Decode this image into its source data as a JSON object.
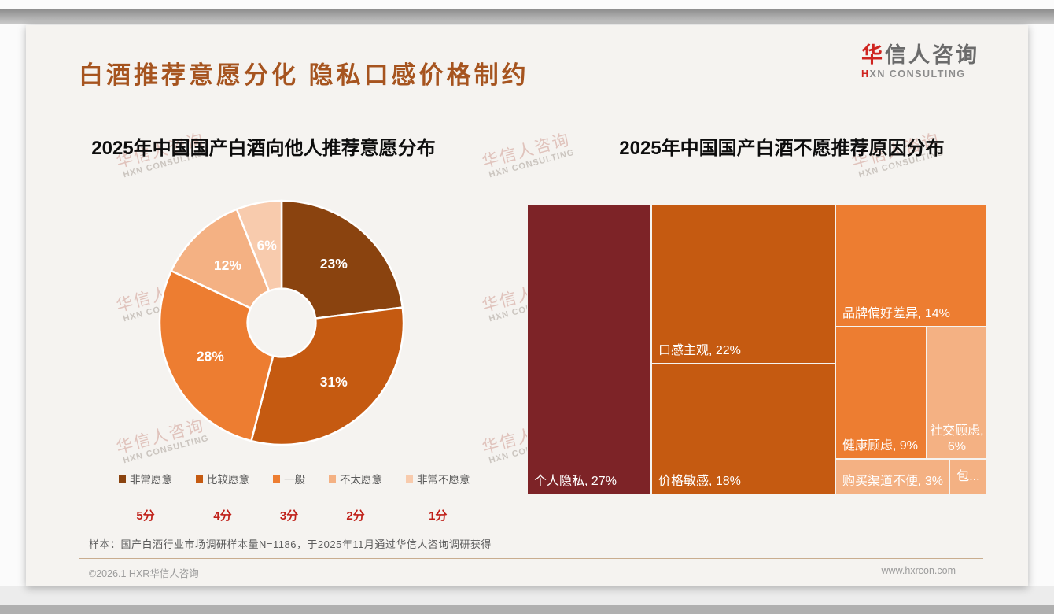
{
  "slide": {
    "title": "白酒推荐意愿分化 隐私口感价格制约",
    "logo": {
      "cn_first": "华",
      "cn_rest": "信人咨询",
      "en_first": "H",
      "en_rest": "XN CONSULTING"
    },
    "watermark": {
      "line1": "华信人咨询",
      "line2": "HXN CONSULTING"
    },
    "source_note": "样本：国产白酒行业市场调研样本量N=1186，于2025年11月通过华信人咨询调研获得",
    "footer": {
      "left": "©2026.1 HXR华信人咨询",
      "right": "www.hxrcon.com"
    }
  },
  "chart_data": [
    {
      "type": "pie",
      "subtype": "donut",
      "title": "2025年中国国产白酒向他人推荐意愿分布",
      "categories": [
        "非常愿意",
        "比较愿意",
        "一般",
        "不太愿意",
        "非常不愿意"
      ],
      "values": [
        23,
        31,
        28,
        12,
        6
      ],
      "labels": [
        "23%",
        "31%",
        "28%",
        "12%",
        "6%"
      ],
      "colors": [
        "#8A430F",
        "#C55A11",
        "#ED7D31",
        "#F4B183",
        "#F8CBAD"
      ],
      "scores": [
        "5分",
        "4分",
        "3分",
        "2分",
        "1分"
      ],
      "legend_position": "bottom",
      "start_angle_deg": 0,
      "direction": "clockwise",
      "inner_radius_ratio": 0.28
    },
    {
      "type": "treemap",
      "title": "2025年中国国产白酒不愿推荐原因分布",
      "cells": [
        {
          "name": "个人隐私",
          "value": 27,
          "label": "个人隐私, 27%",
          "color": "#7D2327",
          "rect": {
            "x": 0,
            "y": 0,
            "w": 27,
            "h": 100
          },
          "align": "bl"
        },
        {
          "name": "口感主观",
          "value": 22,
          "label": "口感主观, 22%",
          "color": "#C55A11",
          "rect": {
            "x": 27,
            "y": 0,
            "w": 40,
            "h": 55
          },
          "align": "bl"
        },
        {
          "name": "价格敏感",
          "value": 18,
          "label": "价格敏感, 18%",
          "color": "#C55A11",
          "rect": {
            "x": 27,
            "y": 55,
            "w": 40,
            "h": 45
          },
          "align": "bl"
        },
        {
          "name": "品牌偏好差异",
          "value": 14,
          "label": "品牌偏好差异, 14%",
          "color": "#ED7D31",
          "rect": {
            "x": 67,
            "y": 0,
            "w": 33,
            "h": 42.4
          },
          "align": "bl"
        },
        {
          "name": "健康顾虑",
          "value": 9,
          "label": "健康顾虑, 9%",
          "color": "#ED7D31",
          "rect": {
            "x": 67,
            "y": 42.4,
            "w": 19.8,
            "h": 45.5
          },
          "align": "bl"
        },
        {
          "name": "社交顾虑",
          "value": 6,
          "label": "社交顾虑, 6%",
          "color": "#F4B183",
          "rect": {
            "x": 86.8,
            "y": 42.4,
            "w": 13.2,
            "h": 45.5
          },
          "align": "bc"
        },
        {
          "name": "购买渠道不便",
          "value": 3,
          "label": "购买渠道不便, 3%",
          "color": "#F4B183",
          "rect": {
            "x": 67,
            "y": 87.9,
            "w": 24.75,
            "h": 12.1
          },
          "align": "bl"
        },
        {
          "name": "包...",
          "value": 1,
          "label": "包...",
          "color": "#F4B183",
          "rect": {
            "x": 91.75,
            "y": 87.9,
            "w": 8.25,
            "h": 12.1
          },
          "align": "c"
        }
      ]
    }
  ],
  "theme": {
    "title_color": "#A6541F",
    "score_color": "#C02019",
    "logo_red": "#CF2420",
    "slide_bg": "#F5F3F0"
  }
}
